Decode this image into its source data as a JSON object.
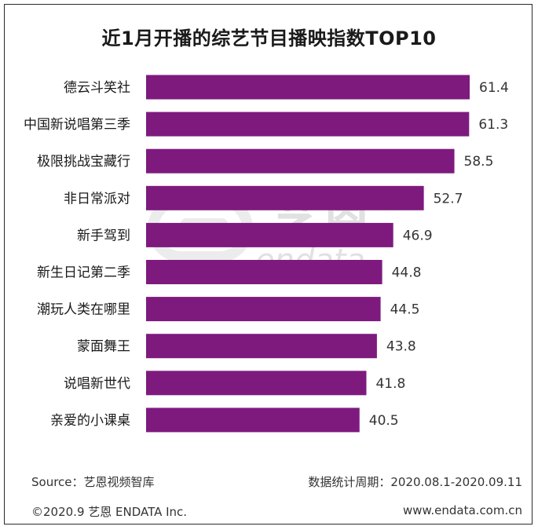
{
  "chart_data": {
    "type": "bar",
    "orientation": "horizontal",
    "title": "近1月开播的综艺节目播映指数TOP10",
    "categories": [
      "德云斗笑社",
      "中国新说唱第三季",
      "极限挑战宝藏行",
      "非日常派对",
      "新手驾到",
      "新生日记第二季",
      "潮玩人类在哪里",
      "蒙面舞王",
      "说唱新世代",
      "亲爱的小课桌"
    ],
    "values": [
      61.4,
      61.3,
      58.5,
      52.7,
      46.9,
      44.8,
      44.5,
      43.8,
      41.8,
      40.5
    ],
    "value_labels": [
      "61.4",
      "61.3",
      "58.5",
      "52.7",
      "46.9",
      "44.8",
      "44.5",
      "43.8",
      "41.8",
      "40.5"
    ],
    "xlim": [
      0,
      65
    ],
    "bar_color": "#7e1a7e",
    "grid": false,
    "legend": "none"
  },
  "watermark": {
    "text_cn": "艺恩",
    "text_en": "endata",
    "color": "#bdbdbd"
  },
  "footer": {
    "source": "Source：艺恩视频智库",
    "period": "数据统计周期：2020.08.1-2020.09.11",
    "copyright": "©2020.9 艺恩 ENDATA Inc.",
    "website": "www.endata.com.cn"
  }
}
